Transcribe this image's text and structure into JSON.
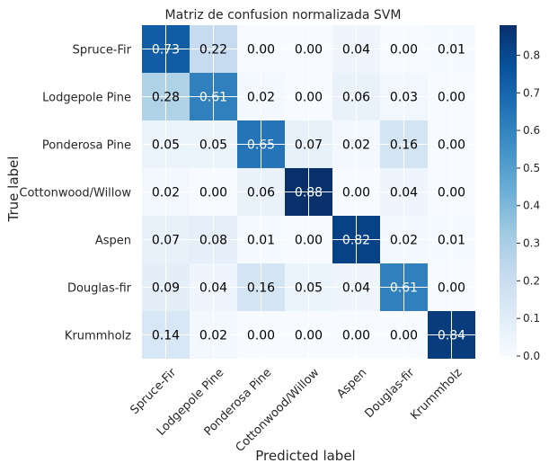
{
  "chart_data": {
    "type": "heatmap",
    "title": "Matriz de confusion normalizada SVM",
    "xlabel": "Predicted label",
    "ylabel": "True label",
    "row_labels": [
      "Spruce-Fir",
      "Lodgepole Pine",
      "Ponderosa Pine",
      "Cottonwood/Willow",
      "Aspen",
      "Douglas-fir",
      "Krummholz"
    ],
    "col_labels": [
      "Spruce-Fir",
      "Lodgepole Pine",
      "Ponderosa Pine",
      "Cottonwood/Willow",
      "Aspen",
      "Douglas-fir",
      "Krummholz"
    ],
    "values": [
      [
        0.73,
        0.22,
        0.0,
        0.0,
        0.04,
        0.0,
        0.01
      ],
      [
        0.28,
        0.61,
        0.02,
        0.0,
        0.06,
        0.03,
        0.0
      ],
      [
        0.05,
        0.05,
        0.65,
        0.07,
        0.02,
        0.16,
        0.0
      ],
      [
        0.02,
        0.0,
        0.06,
        0.88,
        0.0,
        0.04,
        0.0
      ],
      [
        0.07,
        0.08,
        0.01,
        0.0,
        0.82,
        0.02,
        0.01
      ],
      [
        0.09,
        0.04,
        0.16,
        0.05,
        0.04,
        0.61,
        0.0
      ],
      [
        0.14,
        0.02,
        0.0,
        0.0,
        0.0,
        0.0,
        0.84
      ]
    ],
    "value_format": "0.00",
    "colormap": "Blues",
    "colorbar": {
      "range": [
        0,
        0.88
      ],
      "ticks": [
        0.0,
        0.1,
        0.2,
        0.3,
        0.4,
        0.5,
        0.6,
        0.7,
        0.8
      ],
      "tick_labels": [
        "0.0",
        "0.1",
        "0.2",
        "0.3",
        "0.4",
        "0.5",
        "0.6",
        "0.7",
        "0.8"
      ]
    },
    "x_tick_rotation": 45,
    "grid": true,
    "colors": {
      "text_dark": "#000000",
      "text_light": "#ffffff",
      "grid_line": "#ffffff",
      "axis_text": "#262626"
    }
  }
}
